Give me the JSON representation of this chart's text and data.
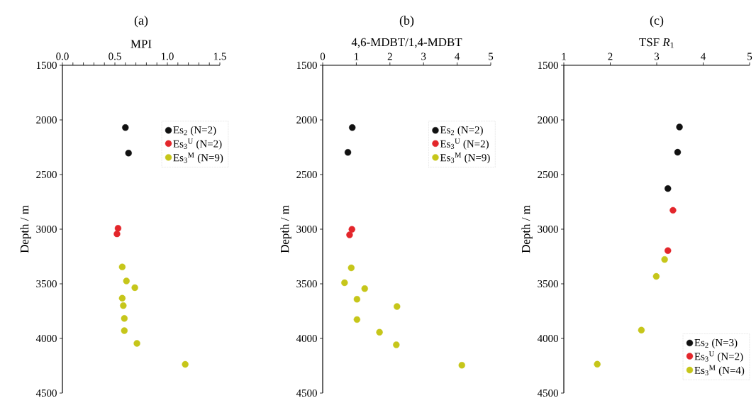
{
  "chart_data": [
    {
      "type": "scatter",
      "title": "(a)",
      "xlabel": "MPI",
      "ylabel": "Depth / m",
      "marker": "circle",
      "legend": "top right",
      "grid": false,
      "xlim": [
        0,
        1.5
      ],
      "ylim": [
        4500,
        1500
      ],
      "xticks": [
        {
          "value": 0,
          "label": "0.0"
        },
        {
          "value": 0.1,
          "label": null
        },
        {
          "value": 0.2,
          "label": null
        },
        {
          "value": 0.3,
          "label": null
        },
        {
          "value": 0.4,
          "label": null
        },
        0.5,
        {
          "value": 0.6,
          "label": null
        },
        {
          "value": 0.7,
          "label": null
        },
        {
          "value": 0.8,
          "label": null
        },
        {
          "value": 0.9,
          "label": null
        },
        {
          "value": 1,
          "label": "1.0"
        },
        {
          "value": 1.1,
          "label": null
        },
        {
          "value": 1.2,
          "label": null
        },
        {
          "value": 1.3,
          "label": null
        },
        {
          "value": 1.4,
          "label": null
        },
        1.5
      ],
      "yticks": [
        1500,
        2000,
        2500,
        3000,
        3500,
        4000,
        4500
      ],
      "series": [
        {
          "name": "Es$_{2}$  (N=2)",
          "color": "#111111",
          "x": [
            0.6,
            0.63
          ],
          "values": [
            2070,
            2304
          ]
        },
        {
          "name": "Es$_{3}$$^{U}$ (N=2)",
          "color": "#e3262b",
          "x": [
            0.53,
            0.52
          ],
          "values": [
            2992,
            3043
          ]
        },
        {
          "name": "Es$_{3}$$^{M}$ (N=9)",
          "color": "#c6c61a",
          "x": [
            0.57,
            0.61,
            0.69,
            0.57,
            0.58,
            0.59,
            0.59,
            0.71,
            1.17
          ],
          "values": [
            3345,
            3474,
            3535,
            3632,
            3699,
            3817,
            3929,
            4045,
            4237
          ]
        }
      ]
    },
    {
      "type": "scatter",
      "title": "(b)",
      "xlabel": "4,6-MDBT/1,4-MDBT",
      "ylabel": "Depth / m",
      "marker": "circle",
      "legend": "top right",
      "grid": false,
      "xlim": [
        0,
        5
      ],
      "ylim": [
        4500,
        1500
      ],
      "xticks": [
        0,
        1,
        2,
        3,
        4,
        5
      ],
      "yticks": [
        1500,
        2000,
        2500,
        3000,
        3500,
        4000,
        4500
      ],
      "series": [
        {
          "name": "Es$_{2}$  (N=2)",
          "color": "#111111",
          "x": [
            0.88,
            0.75
          ],
          "values": [
            2070,
            2297
          ]
        },
        {
          "name": "Es$_{3}$$^{U}$ (N=2)",
          "color": "#e3262b",
          "x": [
            0.87,
            0.8
          ],
          "values": [
            3001,
            3052
          ]
        },
        {
          "name": "Es$_{3}$$^{M}$ (N=9)",
          "color": "#c6c61a",
          "x": [
            0.85,
            0.65,
            1.25,
            1.02,
            2.21,
            1.02,
            1.69,
            2.19,
            4.14
          ],
          "values": [
            3354,
            3490,
            3544,
            3641,
            3708,
            3827,
            3943,
            4058,
            4245
          ]
        }
      ]
    },
    {
      "type": "scatter",
      "title": "(c)",
      "xlabel": "TSF  *R*$_{1}$",
      "ylabel": "Depth / m",
      "marker": "circle",
      "legend": "bottom right",
      "grid": false,
      "xlim": [
        1,
        5
      ],
      "ylim": [
        4500,
        1500
      ],
      "xticks": [
        1,
        2,
        3,
        4,
        5
      ],
      "yticks": [
        1500,
        2000,
        2500,
        3000,
        3500,
        4000,
        4500
      ],
      "series": [
        {
          "name": "Es$_{2}$ (N=3)",
          "color": "#111111",
          "x": [
            3.49,
            3.45,
            3.24
          ],
          "values": [
            2065,
            2296,
            2628
          ]
        },
        {
          "name": "Es$_{3}$$^{U}$ (N=2)",
          "color": "#e3262b",
          "x": [
            3.35,
            3.24
          ],
          "values": [
            2827,
            3196
          ]
        },
        {
          "name": "Es$_{3}$$^{M}$ (N=4)",
          "color": "#c6c61a",
          "x": [
            3.17,
            2.99,
            2.67,
            1.72
          ],
          "values": [
            3277,
            3432,
            3924,
            4236
          ]
        }
      ]
    }
  ]
}
